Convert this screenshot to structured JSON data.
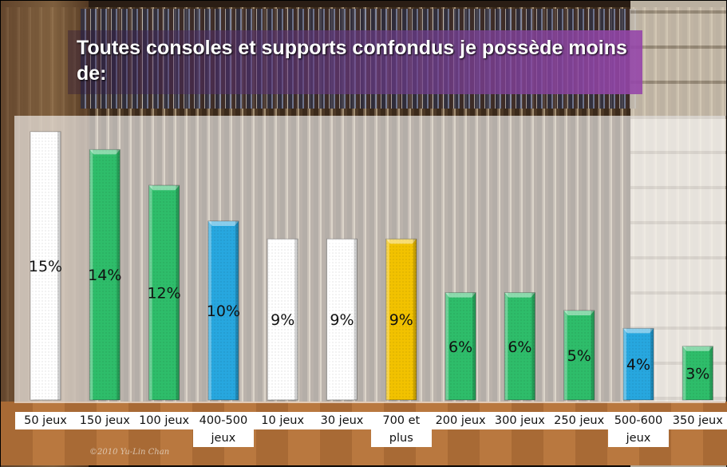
{
  "chart_data": {
    "type": "bar",
    "title": "Toutes consoles et supports confondus je possède moins de:",
    "categories": [
      "50 jeux",
      "150 jeux",
      "100 jeux",
      "400-500 jeux",
      "10 jeux",
      "30 jeux",
      "700 et plus",
      "200 jeux",
      "300 jeux",
      "250 jeux",
      "500-600 jeux",
      "350 jeux"
    ],
    "values": [
      15,
      14,
      12,
      10,
      9,
      9,
      9,
      6,
      6,
      5,
      4,
      3
    ],
    "data_labels": [
      "15%",
      "14%",
      "12%",
      "10%",
      "9%",
      "9%",
      "9%",
      "6%",
      "6%",
      "5%",
      "4%",
      "3%"
    ],
    "bar_colors": [
      "#ffffff",
      "#2ebd6a",
      "#2ebd6a",
      "#27a7df",
      "#ffffff",
      "#ffffff",
      "#f2c200",
      "#2ebd6a",
      "#2ebd6a",
      "#2ebd6a",
      "#27a7df",
      "#2ebd6a"
    ],
    "ylim": [
      0,
      15
    ],
    "xlabel": "",
    "ylabel": "",
    "grid": false
  },
  "watermark": "©2010 Yu-Lin Chan"
}
